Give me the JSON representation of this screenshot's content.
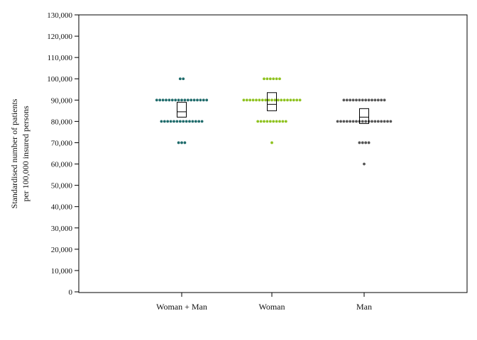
{
  "chart_data": {
    "type": "scatter",
    "subtype": "dot-strip with box",
    "title": "",
    "xlabel": "",
    "ylabel_lines": [
      "Standardised number of patients",
      "per 100,000 insured persons"
    ],
    "ylim": [
      0,
      130000
    ],
    "yticks": [
      0,
      10000,
      20000,
      30000,
      40000,
      50000,
      60000,
      70000,
      80000,
      90000,
      100000,
      110000,
      120000,
      130000
    ],
    "ytick_labels": [
      "0",
      "10,000",
      "20,000",
      "30,000",
      "40,000",
      "50,000",
      "60,000",
      "70,000",
      "80,000",
      "90,000",
      "100,000",
      "110,000",
      "120,000",
      "130,000"
    ],
    "categories": [
      "Woman + Man",
      "Woman",
      "Man"
    ],
    "grid": false,
    "legend": "none",
    "series": [
      {
        "category": "Woman + Man",
        "color": "#1f6b6b",
        "dots": [
          {
            "y": 100000,
            "count": 2
          },
          {
            "y": 90000,
            "count": 17
          },
          {
            "y": 80000,
            "count": 14
          },
          {
            "y": 70000,
            "count": 3
          }
        ],
        "box": {
          "q1": 82000,
          "median": 84500,
          "q3": 89000
        }
      },
      {
        "category": "Woman",
        "color": "#8ec21f",
        "dots": [
          {
            "y": 100000,
            "count": 6
          },
          {
            "y": 90000,
            "count": 19
          },
          {
            "y": 80000,
            "count": 10
          },
          {
            "y": 70000,
            "count": 1
          }
        ],
        "box": {
          "q1": 85000,
          "median": 88000,
          "q3": 93500
        }
      },
      {
        "category": "Man",
        "color": "#555555",
        "dots": [
          {
            "y": 90000,
            "count": 14
          },
          {
            "y": 80000,
            "count": 18
          },
          {
            "y": 70000,
            "count": 4
          },
          {
            "y": 60000,
            "count": 1
          }
        ],
        "box": {
          "q1": 79000,
          "median": 82000,
          "q3": 86000
        }
      }
    ]
  }
}
